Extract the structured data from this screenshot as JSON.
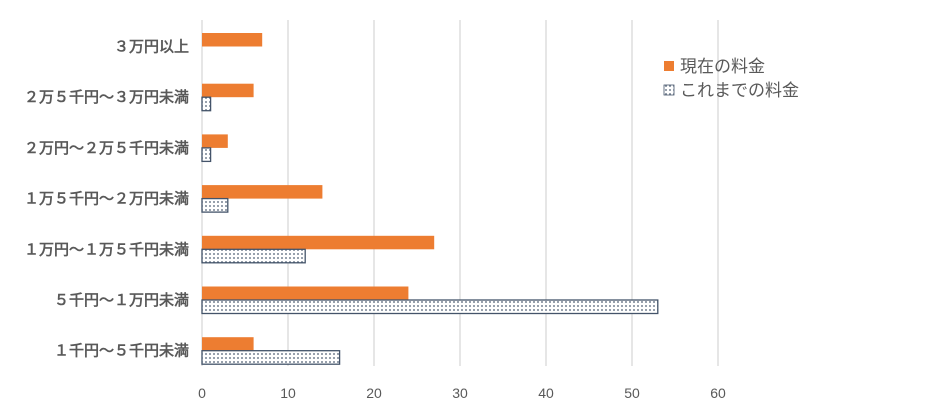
{
  "chart_data": {
    "type": "bar",
    "orientation": "horizontal",
    "categories": [
      "３万円以上",
      "２万５千円～３万円未満",
      "２万円～２万５千円未満",
      "１万５千円～２万円未満",
      "１万円～１万５千円未満",
      "５千円～１万円未満",
      "１千円～５千円未満"
    ],
    "series": [
      {
        "name": "現在の料金",
        "values": [
          7,
          6,
          3,
          14,
          27,
          24,
          6
        ],
        "color": "#ed7d31",
        "pattern": "solid"
      },
      {
        "name": "これまでの料金",
        "values": [
          0,
          1,
          1,
          3,
          12,
          53,
          16
        ],
        "color": "#44546a",
        "pattern": "dotted"
      }
    ],
    "xlim": [
      0,
      60
    ],
    "xticks": [
      "0",
      "10",
      "20",
      "30",
      "40",
      "50",
      "60"
    ],
    "grid": true,
    "legend_position": "top-right",
    "title": "",
    "xlabel": "",
    "ylabel": ""
  }
}
